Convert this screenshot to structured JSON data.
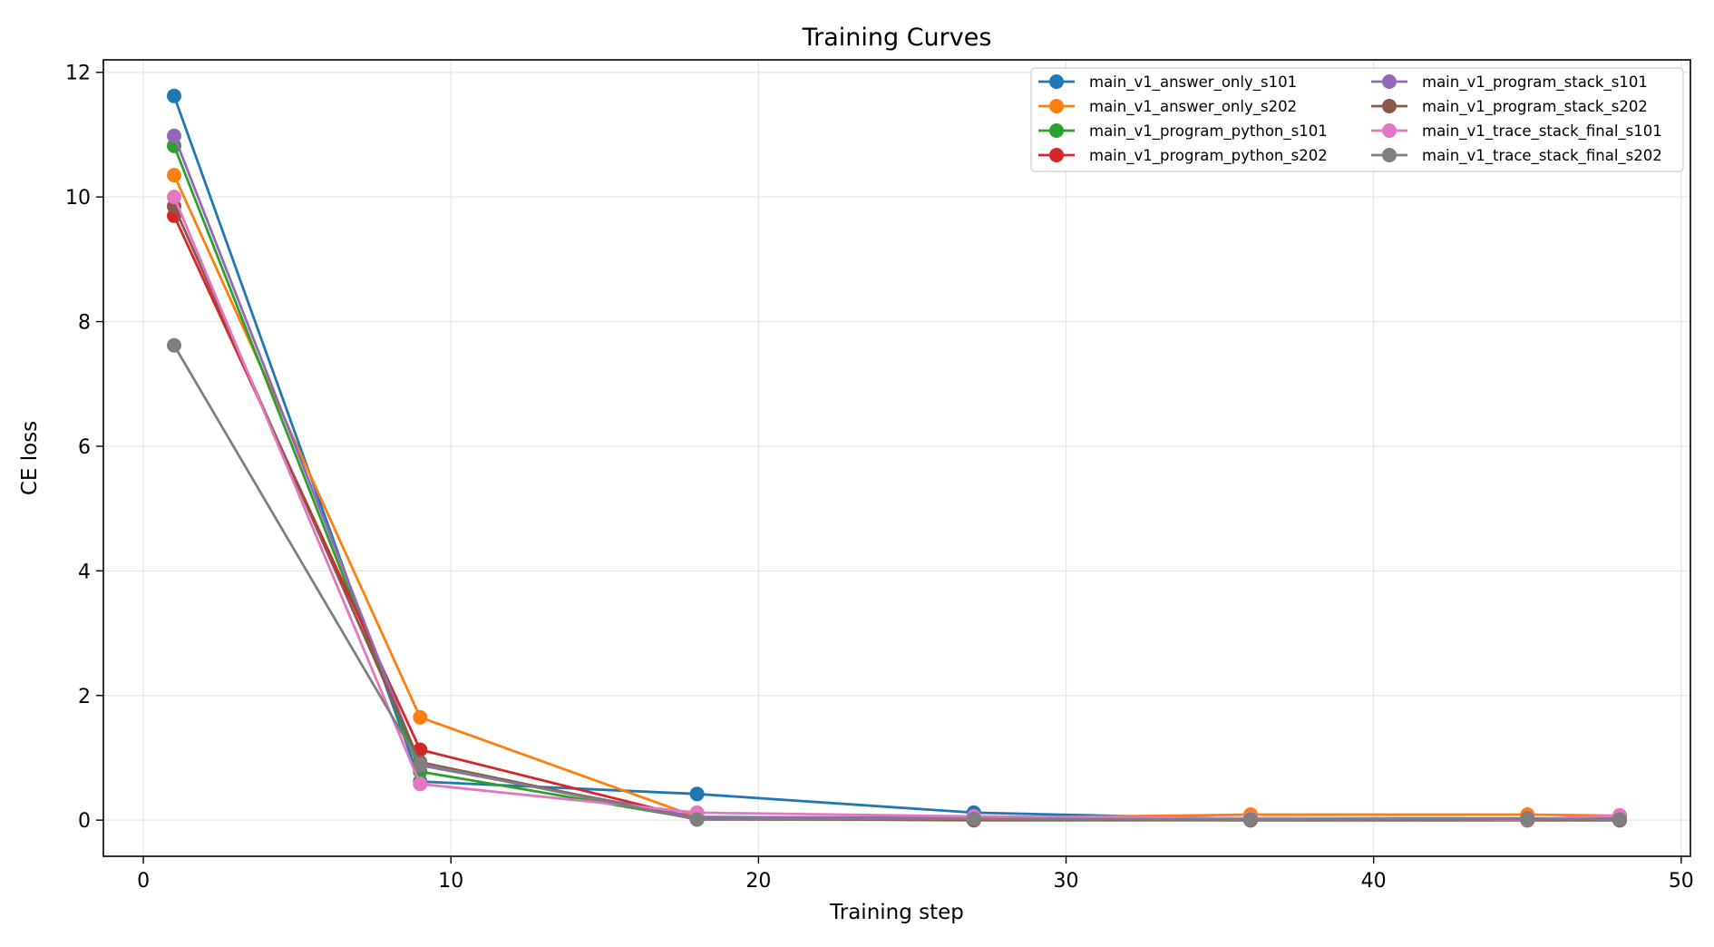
{
  "chart_data": {
    "type": "line",
    "title": "Training Curves",
    "xlabel": "Training step",
    "ylabel": "CE loss",
    "xlim": [
      -1.3,
      50.3
    ],
    "ylim": [
      -0.58,
      12.2
    ],
    "xticks": [
      0,
      10,
      20,
      30,
      40,
      50
    ],
    "yticks": [
      0,
      2,
      4,
      6,
      8,
      10,
      12
    ],
    "grid": true,
    "legend_position": "top-right",
    "legend_columns": 2,
    "series": [
      {
        "name": "main_v1_answer_only_s101",
        "color": "#1f77b4",
        "x": [
          1,
          9,
          18,
          27,
          36,
          45,
          48
        ],
        "y": [
          11.62,
          0.62,
          0.42,
          0.12,
          0.02,
          0.02,
          0.02
        ]
      },
      {
        "name": "main_v1_answer_only_s202",
        "color": "#ff7f0e",
        "x": [
          1,
          9,
          18,
          27,
          36,
          45,
          48
        ],
        "y": [
          10.35,
          1.65,
          0.05,
          0.03,
          0.09,
          0.09,
          0.07
        ]
      },
      {
        "name": "main_v1_program_python_s101",
        "color": "#2ca02c",
        "x": [
          1,
          9,
          18,
          27,
          36,
          45,
          48
        ],
        "y": [
          10.82,
          0.78,
          0.02,
          0.01,
          0.01,
          0.01,
          0.01
        ]
      },
      {
        "name": "main_v1_program_python_s202",
        "color": "#d62728",
        "x": [
          1,
          9,
          18,
          27,
          36,
          45,
          48
        ],
        "y": [
          9.7,
          1.13,
          0.02,
          0.0,
          0.0,
          0.0,
          0.0
        ]
      },
      {
        "name": "main_v1_program_stack_s101",
        "color": "#9467bd",
        "x": [
          1,
          9,
          18,
          27,
          36,
          45,
          48
        ],
        "y": [
          10.98,
          0.88,
          0.05,
          0.04,
          0.03,
          0.03,
          0.03
        ]
      },
      {
        "name": "main_v1_program_stack_s202",
        "color": "#8c564b",
        "x": [
          1,
          9,
          18,
          27,
          36,
          45,
          48
        ],
        "y": [
          9.85,
          0.93,
          0.01,
          0.01,
          0.0,
          0.0,
          0.0
        ]
      },
      {
        "name": "main_v1_trace_stack_final_s101",
        "color": "#e377c2",
        "x": [
          1,
          9,
          18,
          27,
          36,
          45,
          48
        ],
        "y": [
          10.0,
          0.58,
          0.12,
          0.06,
          0.03,
          0.01,
          0.08
        ]
      },
      {
        "name": "main_v1_trace_stack_final_s202",
        "color": "#7f7f7f",
        "x": [
          1,
          9,
          18,
          27,
          36,
          45,
          48
        ],
        "y": [
          7.62,
          0.9,
          0.01,
          0.02,
          0.01,
          0.02,
          0.01
        ]
      }
    ]
  }
}
